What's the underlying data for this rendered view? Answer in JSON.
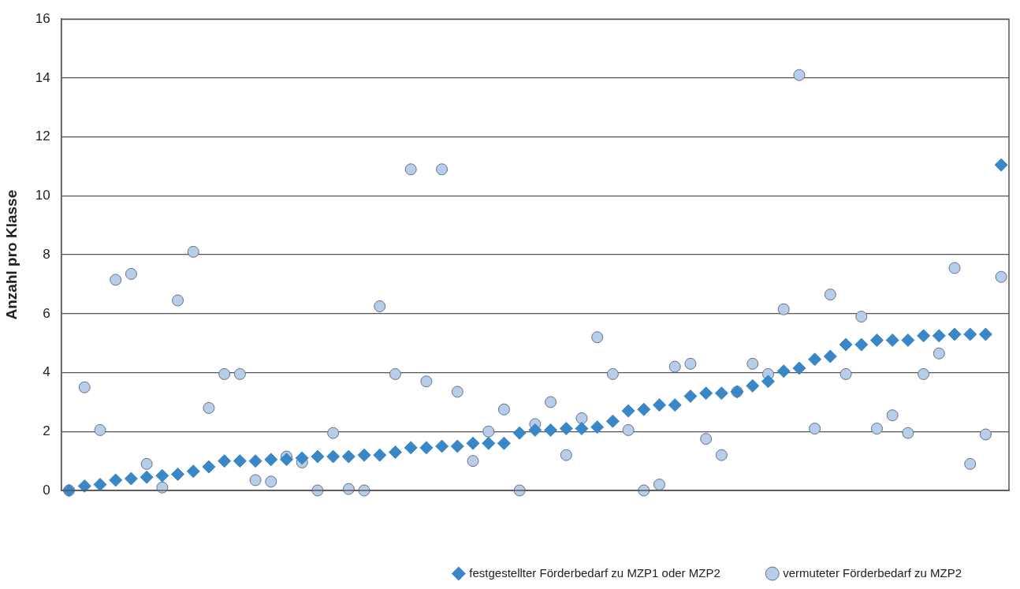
{
  "chart_data": {
    "type": "scatter",
    "ylabel": "Anzahl pro Klasse",
    "categories": [
      null,
      null,
      null,
      null,
      null,
      null,
      null,
      null,
      null,
      null,
      null,
      null,
      null,
      null,
      null,
      null,
      null,
      null,
      null,
      null,
      null,
      null,
      null,
      null,
      null,
      null,
      null,
      null,
      null,
      null,
      null,
      null,
      null,
      null,
      null,
      null,
      null,
      null,
      null,
      null,
      null,
      null,
      null,
      null,
      null,
      null,
      null,
      null,
      null,
      null,
      null,
      null,
      null,
      null,
      null,
      null,
      null,
      null,
      null,
      null,
      null
    ],
    "ylim": [
      0,
      16
    ],
    "yticks": [
      0,
      2,
      4,
      6,
      8,
      10,
      12,
      14,
      16
    ],
    "grid": "y",
    "legend": "bottom",
    "series": [
      {
        "name": "festgestellter Förderbedarf zu MZP1 oder MZP2",
        "color": "#3a87c8",
        "marker": "diamond",
        "values": [
          0,
          0.15,
          0.2,
          0.35,
          0.4,
          0.45,
          0.5,
          0.55,
          0.65,
          0.8,
          1.0,
          1.0,
          1.0,
          1.05,
          1.05,
          1.1,
          1.15,
          1.15,
          1.15,
          1.2,
          1.2,
          1.3,
          1.45,
          1.45,
          1.5,
          1.5,
          1.6,
          1.6,
          1.6,
          1.95,
          2.05,
          2.05,
          2.1,
          2.1,
          2.15,
          2.35,
          2.7,
          2.75,
          2.9,
          2.9,
          3.2,
          3.3,
          3.3,
          3.35,
          3.55,
          3.7,
          4.05,
          4.15,
          4.45,
          4.55,
          4.95,
          4.95,
          5.1,
          5.1,
          5.1,
          5.25,
          5.25,
          5.3,
          5.3,
          5.3,
          11.05
        ]
      },
      {
        "name": "vermuteter Förderbedarf zu MZP2",
        "color": "#b8cde9",
        "marker": "circle",
        "values": [
          0,
          3.5,
          2.05,
          7.15,
          7.35,
          0.9,
          0.1,
          6.45,
          8.1,
          2.8,
          3.95,
          3.95,
          0.35,
          0.3,
          1.15,
          0.95,
          0,
          1.95,
          0.05,
          0,
          6.25,
          3.95,
          10.9,
          3.7,
          10.9,
          3.35,
          1.0,
          2.0,
          2.75,
          0,
          2.25,
          3.0,
          1.2,
          2.45,
          5.2,
          3.95,
          2.05,
          0,
          0.2,
          4.2,
          4.3,
          1.75,
          1.2,
          3.35,
          4.3,
          3.95,
          6.15,
          14.1,
          2.1,
          6.65,
          3.95,
          5.9,
          2.1,
          2.55,
          1.95,
          3.95,
          4.65,
          7.55,
          0.9,
          1.9,
          7.25
        ]
      }
    ]
  }
}
